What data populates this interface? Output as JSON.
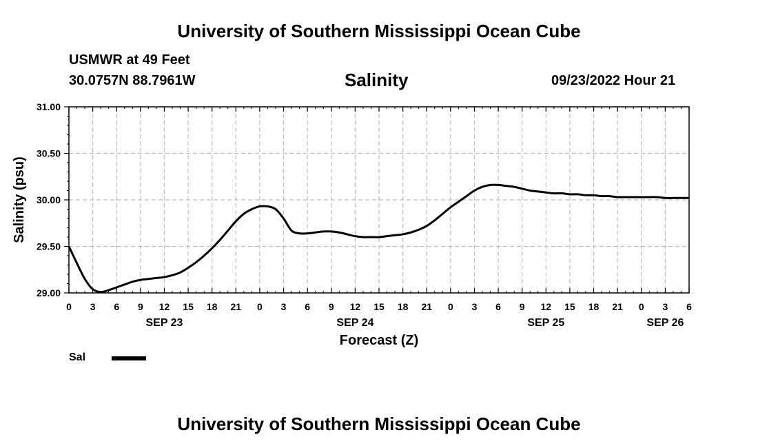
{
  "page": {
    "top_title": "University of Southern Mississippi Ocean Cube",
    "bottom_title": "University of Southern Mississippi Ocean Cube",
    "station": "USMWR at 49 Feet",
    "coordinates": "30.0757N  88.7961W",
    "timestamp": "09/23/2022 Hour 21"
  },
  "chart_data": {
    "type": "line",
    "title": "Salinity",
    "xlabel": "Forecast (Z)",
    "ylabel": "Salinity (psu)",
    "xlim": [
      0,
      78
    ],
    "ylim": [
      29.0,
      31.0
    ],
    "grid": true,
    "x_tick_values": [
      0,
      3,
      6,
      9,
      12,
      15,
      18,
      21,
      24,
      27,
      30,
      33,
      36,
      39,
      42,
      45,
      48,
      51,
      54,
      57,
      60,
      63,
      66,
      69,
      72,
      75,
      78
    ],
    "x_tick_labels": [
      "0",
      "3",
      "6",
      "9",
      "12",
      "15",
      "18",
      "21",
      "0",
      "3",
      "6",
      "9",
      "12",
      "15",
      "18",
      "21",
      "0",
      "3",
      "6",
      "9",
      "12",
      "15",
      "18",
      "21",
      "0",
      "3",
      "6"
    ],
    "date_labels": [
      {
        "x": 12,
        "label": "SEP 23"
      },
      {
        "x": 36,
        "label": "SEP 24"
      },
      {
        "x": 60,
        "label": "SEP 25"
      },
      {
        "x": 75,
        "label": "SEP 26"
      }
    ],
    "y_tick_values": [
      29.0,
      29.5,
      30.0,
      30.5,
      31.0
    ],
    "y_tick_labels": [
      "29.00",
      "29.50",
      "30.00",
      "30.50",
      "31.00"
    ],
    "legend": {
      "placement": "bottom-left",
      "entries": [
        {
          "label": "Sal",
          "color": "#000000"
        }
      ]
    },
    "series": [
      {
        "name": "Sal",
        "color": "#000000",
        "x": [
          0,
          1,
          2,
          3,
          4,
          5,
          6,
          7,
          8,
          9,
          10,
          11,
          12,
          13,
          14,
          15,
          16,
          17,
          18,
          19,
          20,
          21,
          22,
          23,
          24,
          25,
          26,
          27,
          28,
          29,
          30,
          31,
          32,
          33,
          34,
          35,
          36,
          37,
          38,
          39,
          40,
          41,
          42,
          43,
          44,
          45,
          46,
          47,
          48,
          49,
          50,
          51,
          52,
          53,
          54,
          55,
          56,
          57,
          58,
          59,
          60,
          61,
          62,
          63,
          64,
          65,
          66,
          67,
          68,
          69,
          70,
          71,
          72,
          73,
          74,
          75,
          76,
          77,
          78
        ],
        "values": [
          29.5,
          29.32,
          29.15,
          29.04,
          29.01,
          29.03,
          29.06,
          29.09,
          29.12,
          29.14,
          29.15,
          29.16,
          29.17,
          29.19,
          29.22,
          29.27,
          29.33,
          29.4,
          29.48,
          29.57,
          29.67,
          29.77,
          29.85,
          29.9,
          29.93,
          29.93,
          29.9,
          29.8,
          29.67,
          29.64,
          29.64,
          29.65,
          29.66,
          29.66,
          29.65,
          29.63,
          29.61,
          29.6,
          29.6,
          29.6,
          29.61,
          29.62,
          29.63,
          29.65,
          29.68,
          29.72,
          29.78,
          29.85,
          29.92,
          29.98,
          30.04,
          30.1,
          30.14,
          30.16,
          30.16,
          30.15,
          30.14,
          30.12,
          30.1,
          30.09,
          30.08,
          30.07,
          30.07,
          30.06,
          30.06,
          30.05,
          30.05,
          30.04,
          30.04,
          30.03,
          30.03,
          30.03,
          30.03,
          30.03,
          30.03,
          30.02,
          30.02,
          30.02,
          30.02
        ]
      }
    ]
  }
}
